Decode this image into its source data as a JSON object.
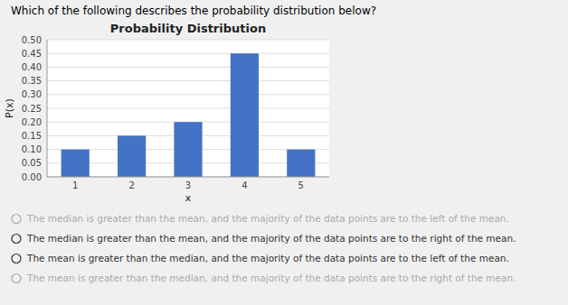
{
  "chart_data": {
    "type": "bar",
    "title": "Probability Distribution",
    "x_label": "x",
    "y_label": "P(x)",
    "categories": [
      1,
      2,
      3,
      4,
      5
    ],
    "values": [
      0.1,
      0.15,
      0.2,
      0.45,
      0.1
    ],
    "color": "#4472C4",
    "ylim": [
      0,
      0.5
    ],
    "yticks": [
      {
        "value": 0,
        "label": "0.00"
      },
      0.05,
      {
        "value": 0.1,
        "label": "0.10"
      },
      0.15,
      {
        "value": 0.2,
        "label": "0.20"
      },
      0.25,
      {
        "value": 0.3,
        "label": "0.30"
      },
      0.35,
      {
        "value": 0.4,
        "label": "0.40"
      },
      0.45,
      {
        "value": 0.5,
        "label": "0.50"
      }
    ],
    "grid": true,
    "annotations": [
      {
        "text": "Which of the following describes the probability distribution below?"
      },
      {
        "text": "The median is greater than the mean, and the majority of the data points are to the left of the mean.",
        "color": "#aaaaaa"
      },
      {
        "text": "The median is greater than the mean, and the majority of the data points are to the right of the mean.",
        "color": "#333333"
      },
      {
        "text": "The mean is greater than the median, and the majority of the data points are to the left of the mean.",
        "color": "#333333"
      },
      {
        "text": "The mean is greater than the median, and the majority of the data points are to the right of the mean.",
        "color": "#aaaaaa"
      }
    ]
  }
}
